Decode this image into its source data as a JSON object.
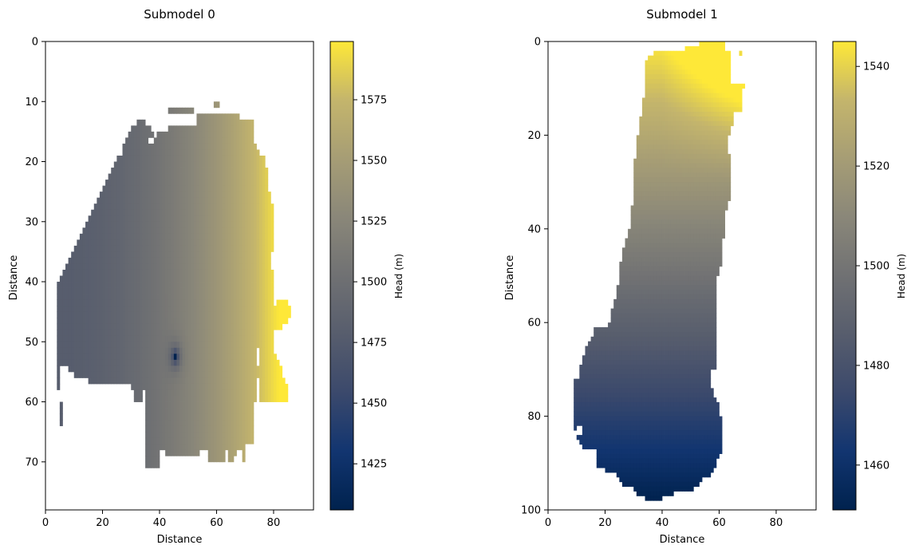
{
  "colorbar_label": "Head (m)",
  "chart_data": [
    {
      "type": "heatmap",
      "title": "Submodel 0",
      "xlabel": "Distance",
      "ylabel": "Distance",
      "xlim": [
        0,
        94
      ],
      "ylim": [
        78,
        0
      ],
      "x_ticks": [
        0,
        20,
        40,
        60,
        80
      ],
      "y_ticks": [
        0,
        10,
        20,
        30,
        40,
        50,
        60,
        70
      ],
      "colormap": "cividis",
      "colorbar": {
        "label": "Head (m)",
        "range": [
          1406,
          1599
        ],
        "ticks": [
          1425,
          1450,
          1475,
          1500,
          1525,
          1550,
          1575
        ]
      },
      "head_gradient": {
        "west_value": 1478,
        "east_value": 1599,
        "low_point": {
          "x": 45.5,
          "y": 52.5,
          "value": 1406
        }
      },
      "active_rows": [
        [
          11.2,
          12,
          43,
          52
        ],
        [
          10,
          11,
          59,
          61
        ],
        [
          12,
          13,
          53,
          68
        ],
        [
          13,
          14,
          32,
          35
        ],
        [
          13,
          14,
          53,
          73
        ],
        [
          14,
          15,
          30,
          37
        ],
        [
          14,
          15,
          43,
          73
        ],
        [
          15,
          16,
          29,
          38
        ],
        [
          15,
          16,
          39,
          73
        ],
        [
          16,
          17,
          28,
          36
        ],
        [
          16,
          17,
          38,
          73
        ],
        [
          17,
          18,
          27,
          74
        ],
        [
          18,
          19,
          27,
          75
        ],
        [
          19,
          20,
          25,
          77
        ],
        [
          20,
          21,
          24,
          77
        ],
        [
          21,
          22,
          23,
          78
        ],
        [
          22,
          23,
          22,
          78
        ],
        [
          23,
          24,
          21,
          78
        ],
        [
          24,
          25,
          20,
          78
        ],
        [
          25,
          26,
          19,
          79
        ],
        [
          26,
          27,
          18,
          79
        ],
        [
          27,
          28,
          17,
          80
        ],
        [
          28,
          29,
          16,
          80
        ],
        [
          29,
          30,
          15,
          80
        ],
        [
          30,
          31,
          14,
          80
        ],
        [
          31,
          32,
          13,
          80
        ],
        [
          32,
          33,
          12,
          80
        ],
        [
          33,
          34,
          11,
          80
        ],
        [
          34,
          35,
          10,
          80
        ],
        [
          35,
          36,
          9,
          79
        ],
        [
          36,
          37,
          8,
          79
        ],
        [
          37,
          38,
          7,
          79
        ],
        [
          38,
          39,
          6,
          80
        ],
        [
          39,
          40,
          5,
          80
        ],
        [
          40,
          41,
          4,
          80
        ],
        [
          41,
          42,
          4,
          80
        ],
        [
          42,
          43,
          4,
          81
        ],
        [
          43,
          44,
          4,
          85
        ],
        [
          44,
          45,
          4,
          86
        ],
        [
          45,
          46,
          4,
          86
        ],
        [
          46,
          47,
          4,
          85
        ],
        [
          47,
          48,
          4,
          83
        ],
        [
          48,
          49,
          4,
          81
        ],
        [
          49,
          50,
          4,
          81
        ],
        [
          50,
          51,
          4,
          80
        ],
        [
          51,
          52,
          4,
          80
        ],
        [
          52,
          53,
          4,
          81
        ],
        [
          53,
          54,
          4,
          82
        ],
        [
          54,
          55,
          4,
          83
        ],
        [
          55,
          56,
          4,
          83
        ],
        [
          56,
          57,
          4,
          84
        ],
        [
          57,
          58,
          4,
          85
        ],
        [
          58,
          59,
          5,
          85
        ],
        [
          59,
          60,
          5,
          85
        ],
        [
          60,
          61,
          5,
          75
        ],
        [
          61,
          62,
          5,
          74
        ],
        [
          62,
          63,
          5,
          73
        ],
        [
          63,
          64,
          5,
          73
        ],
        [
          64,
          65,
          6,
          73
        ],
        [
          65,
          66,
          35,
          73
        ],
        [
          66,
          67,
          35,
          73
        ],
        [
          67,
          68,
          35,
          73
        ],
        [
          68,
          69,
          35,
          73
        ],
        [
          69,
          70,
          35,
          70
        ],
        [
          70,
          71,
          35,
          40
        ]
      ],
      "inactive_patches": [
        [
          54,
          60,
          5,
          8
        ],
        [
          55,
          60,
          8,
          10
        ],
        [
          56,
          60,
          10,
          15
        ],
        [
          57,
          60,
          15,
          20
        ],
        [
          57.5,
          60,
          20,
          27
        ],
        [
          57,
          60,
          27,
          30
        ],
        [
          58,
          60,
          34,
          35
        ],
        [
          58,
          60,
          30,
          31
        ],
        [
          60,
          63,
          6,
          8
        ],
        [
          60,
          64,
          8,
          9
        ],
        [
          60,
          65,
          9,
          10
        ],
        [
          60,
          65,
          10,
          35
        ],
        [
          62,
          66,
          6,
          8
        ],
        [
          63,
          66,
          8,
          35
        ],
        [
          68,
          71,
          40,
          42
        ],
        [
          69,
          71,
          42,
          54
        ],
        [
          68,
          71,
          54,
          57
        ],
        [
          68,
          71,
          63,
          64
        ],
        [
          70,
          71,
          62,
          63
        ],
        [
          68,
          71,
          67,
          69
        ],
        [
          69,
          71,
          66,
          69
        ],
        [
          67,
          71,
          70,
          73
        ],
        [
          60,
          67,
          73,
          74
        ],
        [
          56,
          61,
          74,
          75
        ],
        [
          51,
          54,
          74,
          75
        ],
        [
          41,
          44,
          80,
          81
        ],
        [
          48,
          50,
          80,
          81
        ]
      ]
    },
    {
      "type": "heatmap",
      "title": "Submodel 1",
      "xlabel": "Distance",
      "ylabel": "Distance",
      "xlim": [
        0,
        94
      ],
      "ylim": [
        100,
        0
      ],
      "x_ticks": [
        0,
        20,
        40,
        60,
        80
      ],
      "y_ticks": [
        0,
        20,
        40,
        60,
        80,
        100
      ],
      "colormap": "cividis",
      "colorbar": {
        "label": "Head (m)",
        "range": [
          1451,
          1545
        ],
        "ticks": [
          1460,
          1480,
          1500,
          1520,
          1540
        ]
      },
      "head_gradient": {
        "south_value": 1451,
        "north_value": 1545,
        "east_bonus": 30
      },
      "active_rows": [
        [
          0,
          1,
          53,
          62
        ],
        [
          1,
          2,
          48,
          62
        ],
        [
          2,
          3,
          37,
          64
        ],
        [
          3,
          4,
          35,
          64
        ],
        [
          4,
          5,
          34,
          64
        ],
        [
          5,
          6,
          34,
          64
        ],
        [
          6,
          7,
          34,
          64
        ],
        [
          7,
          8,
          34,
          64
        ],
        [
          8,
          9,
          34,
          64
        ],
        [
          9,
          10,
          34,
          69
        ],
        [
          10,
          11,
          34,
          68
        ],
        [
          11,
          12,
          34,
          68
        ],
        [
          12,
          13,
          33,
          68
        ],
        [
          13,
          14,
          33,
          68
        ],
        [
          14,
          15,
          33,
          68
        ],
        [
          15,
          16,
          33,
          65
        ],
        [
          16,
          17,
          32,
          65
        ],
        [
          17,
          18,
          32,
          65
        ],
        [
          18,
          19,
          32,
          64
        ],
        [
          19,
          20,
          32,
          64
        ],
        [
          20,
          21,
          31,
          63
        ],
        [
          21,
          22,
          31,
          63
        ],
        [
          22,
          23,
          31,
          63
        ],
        [
          23,
          24,
          31,
          63
        ],
        [
          24,
          25,
          31,
          64
        ],
        [
          25,
          26,
          30,
          64
        ],
        [
          26,
          27,
          30,
          64
        ],
        [
          27,
          28,
          30,
          64
        ],
        [
          28,
          29,
          30,
          64
        ],
        [
          29,
          30,
          30,
          64
        ],
        [
          30,
          31,
          30,
          64
        ],
        [
          31,
          32,
          30,
          64
        ],
        [
          32,
          33,
          30,
          64
        ],
        [
          33,
          34,
          30,
          64
        ],
        [
          34,
          35,
          30,
          63
        ],
        [
          35,
          36,
          29,
          63
        ],
        [
          36,
          37,
          29,
          62
        ],
        [
          37,
          38,
          29,
          62
        ],
        [
          38,
          39,
          29,
          62
        ],
        [
          39,
          40,
          29,
          62
        ],
        [
          40,
          41,
          28,
          62
        ],
        [
          41,
          42,
          28,
          62
        ],
        [
          42,
          43,
          27,
          61
        ],
        [
          43,
          44,
          27,
          61
        ],
        [
          44,
          45,
          26,
          61
        ],
        [
          45,
          46,
          26,
          61
        ],
        [
          46,
          47,
          26,
          61
        ],
        [
          47,
          48,
          25,
          61
        ],
        [
          48,
          49,
          25,
          60
        ],
        [
          49,
          50,
          25,
          60
        ],
        [
          50,
          51,
          25,
          59
        ],
        [
          51,
          52,
          25,
          59
        ],
        [
          52,
          53,
          24,
          59
        ],
        [
          53,
          54,
          24,
          59
        ],
        [
          54,
          55,
          24,
          59
        ],
        [
          55,
          56,
          23,
          59
        ],
        [
          56,
          57,
          23,
          59
        ],
        [
          57,
          58,
          22,
          59
        ],
        [
          58,
          59,
          22,
          59
        ],
        [
          59,
          60,
          22,
          59
        ],
        [
          60,
          61,
          21,
          59
        ],
        [
          61,
          62,
          16,
          59
        ],
        [
          62,
          63,
          16,
          59
        ],
        [
          63,
          64,
          15,
          59
        ],
        [
          64,
          65,
          14,
          59
        ],
        [
          65,
          66,
          13,
          59
        ],
        [
          66,
          67,
          13,
          59
        ],
        [
          67,
          68,
          12,
          59
        ],
        [
          68,
          69,
          12,
          59
        ],
        [
          69,
          70,
          11,
          59
        ],
        [
          70,
          71,
          11,
          57
        ],
        [
          71,
          72,
          11,
          57
        ],
        [
          72,
          73,
          9,
          57
        ],
        [
          73,
          74,
          9,
          57
        ],
        [
          74,
          75,
          9,
          58
        ],
        [
          75,
          76,
          9,
          58
        ],
        [
          76,
          77,
          9,
          59
        ],
        [
          77,
          78,
          9,
          60
        ],
        [
          78,
          79,
          9,
          60
        ],
        [
          79,
          80,
          9,
          60
        ],
        [
          80,
          81,
          9,
          61
        ],
        [
          81,
          82,
          9,
          61
        ],
        [
          82,
          83,
          9,
          61
        ],
        [
          83,
          84,
          10,
          61
        ],
        [
          84,
          85,
          10,
          61
        ],
        [
          85,
          86,
          11,
          61
        ],
        [
          86,
          87,
          12,
          61
        ],
        [
          87,
          88,
          15,
          61
        ],
        [
          88,
          89,
          15,
          60
        ],
        [
          89,
          90,
          17,
          59
        ],
        [
          90,
          91,
          17,
          59
        ],
        [
          91,
          92,
          20,
          58
        ],
        [
          92,
          93,
          24,
          57
        ],
        [
          93,
          94,
          25,
          54
        ],
        [
          94,
          95,
          26,
          53
        ],
        [
          95,
          96,
          30,
          51
        ],
        [
          96,
          97,
          31,
          47
        ],
        [
          97,
          98,
          34,
          47
        ]
      ],
      "inactive_patches": [
        [
          1,
          3,
          67,
          70
        ],
        [
          2,
          3,
          64,
          67
        ],
        [
          3,
          9,
          64,
          66
        ],
        [
          3.3,
          9,
          66,
          70
        ],
        [
          87,
          90,
          15,
          17
        ],
        [
          82,
          84,
          10,
          12
        ],
        [
          97,
          98,
          40,
          47
        ],
        [
          96,
          97,
          44,
          47
        ]
      ],
      "extra_cells": [
        [
          2,
          3,
          67,
          68
        ]
      ]
    }
  ]
}
